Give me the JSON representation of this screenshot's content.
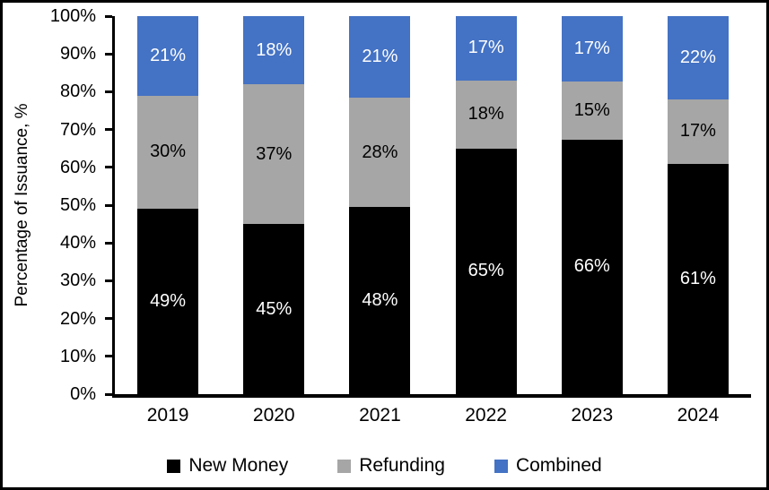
{
  "figure": {
    "background_color": "#ffffff",
    "border_color": "#000000"
  },
  "chart_data": {
    "type": "bar",
    "stacked": true,
    "title": "",
    "xlabel": "",
    "ylabel": "Percentage of Issuance, %",
    "ylim": [
      0,
      100
    ],
    "y_ticks": [
      "0%",
      "10%",
      "20%",
      "30%",
      "40%",
      "50%",
      "60%",
      "70%",
      "80%",
      "90%",
      "100%"
    ],
    "y_tick_values": [
      0,
      10,
      20,
      30,
      40,
      50,
      60,
      70,
      80,
      90,
      100
    ],
    "grid": false,
    "legend_position": "bottom",
    "categories": [
      "2019",
      "2020",
      "2021",
      "2022",
      "2023",
      "2024"
    ],
    "series": [
      {
        "name": "New Money",
        "color": "#000000",
        "label_color": "#ffffff",
        "values": [
          49,
          45,
          48,
          65,
          66,
          61
        ],
        "labels": [
          "49%",
          "45%",
          "48%",
          "65%",
          "66%",
          "61%"
        ]
      },
      {
        "name": "Refunding",
        "color": "#A6A6A6",
        "label_color": "#000000",
        "values": [
          30,
          37,
          28,
          18,
          15,
          17
        ],
        "labels": [
          "30%",
          "37%",
          "28%",
          "18%",
          "15%",
          "17%"
        ]
      },
      {
        "name": "Combined",
        "color": "#4472C4",
        "label_color": "#ffffff",
        "values": [
          21,
          18,
          21,
          17,
          17,
          22
        ],
        "labels": [
          "21%",
          "18%",
          "21%",
          "17%",
          "17%",
          "22%"
        ]
      }
    ]
  }
}
